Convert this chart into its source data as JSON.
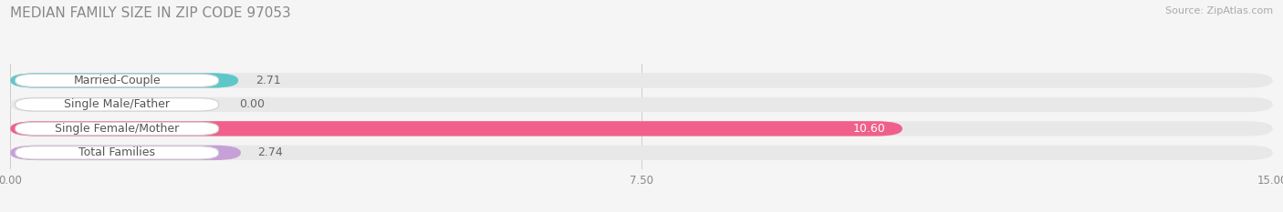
{
  "title": "MEDIAN FAMILY SIZE IN ZIP CODE 97053",
  "source_text": "Source: ZipAtlas.com",
  "categories": [
    "Married-Couple",
    "Single Male/Father",
    "Single Female/Mother",
    "Total Families"
  ],
  "values": [
    2.71,
    0.0,
    10.6,
    2.74
  ],
  "bar_colors": [
    "#5ec8c8",
    "#aab4e8",
    "#f0608a",
    "#c8a0d8"
  ],
  "xlim": [
    0,
    15.0
  ],
  "xticks": [
    0.0,
    7.5,
    15.0
  ],
  "xtick_labels": [
    "0.00",
    "7.50",
    "15.00"
  ],
  "bar_height": 0.62,
  "label_fontsize": 9.0,
  "value_fontsize": 9.0,
  "title_fontsize": 11,
  "source_fontsize": 8.0,
  "bg_color": "#f5f5f5",
  "bar_bg_color": "#e8e8e8",
  "bar_bg_color2": "#ececec"
}
